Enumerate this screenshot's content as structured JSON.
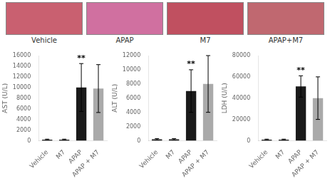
{
  "chart_data": [
    {
      "type": "image",
      "xlabel": "Vehicle",
      "color": "#c96070"
    },
    {
      "type": "image",
      "xlabel": "APAP",
      "color": "#d070a0"
    },
    {
      "type": "image",
      "xlabel": "M7",
      "color": "#c05060"
    },
    {
      "type": "image",
      "xlabel": "APAP+M7",
      "color": "#c06870"
    },
    {
      "type": "bar",
      "ylabel": "AST (U/L)",
      "categories": [
        "Vehicle",
        "M7",
        "APAP",
        "APAP + M7"
      ],
      "values": [
        200,
        200,
        10000,
        9800
      ],
      "errors": [
        100,
        100,
        4500,
        4500
      ],
      "colors": [
        "#1a1a1a",
        "#1a1a1a",
        "#1a1a1a",
        "#aaaaaa"
      ],
      "ylim": [
        0,
        16000
      ],
      "yticks": [
        0,
        2000,
        4000,
        6000,
        8000,
        10000,
        12000,
        14000,
        16000
      ],
      "grid": false,
      "annotation": {
        "text": "**",
        "category": "APAP"
      }
    },
    {
      "type": "bar",
      "ylabel": "ALT (U/L)",
      "categories": [
        "Vehicle",
        "M7",
        "APAP",
        "APAP + M7"
      ],
      "values": [
        200,
        200,
        7000,
        8000
      ],
      "errors": [
        100,
        100,
        3000,
        4000
      ],
      "colors": [
        "#1a1a1a",
        "#1a1a1a",
        "#1a1a1a",
        "#aaaaaa"
      ],
      "ylim": [
        0,
        12000
      ],
      "yticks": [
        0,
        2000,
        4000,
        6000,
        8000,
        10000,
        12000
      ],
      "grid": false,
      "annotation": {
        "text": "**",
        "category": "APAP"
      }
    },
    {
      "type": "bar",
      "ylabel": "LDH (U/L)",
      "categories": [
        "Vehicle",
        "M7",
        "APAP",
        "APAP + M7"
      ],
      "values": [
        1000,
        1000,
        51000,
        40000
      ],
      "errors": [
        500,
        500,
        10000,
        20000
      ],
      "colors": [
        "#1a1a1a",
        "#1a1a1a",
        "#1a1a1a",
        "#aaaaaa"
      ],
      "ylim": [
        0,
        80000
      ],
      "yticks": [
        0,
        20000,
        40000,
        60000,
        80000
      ],
      "grid": false,
      "annotation": {
        "text": "**",
        "category": "APAP"
      }
    }
  ]
}
